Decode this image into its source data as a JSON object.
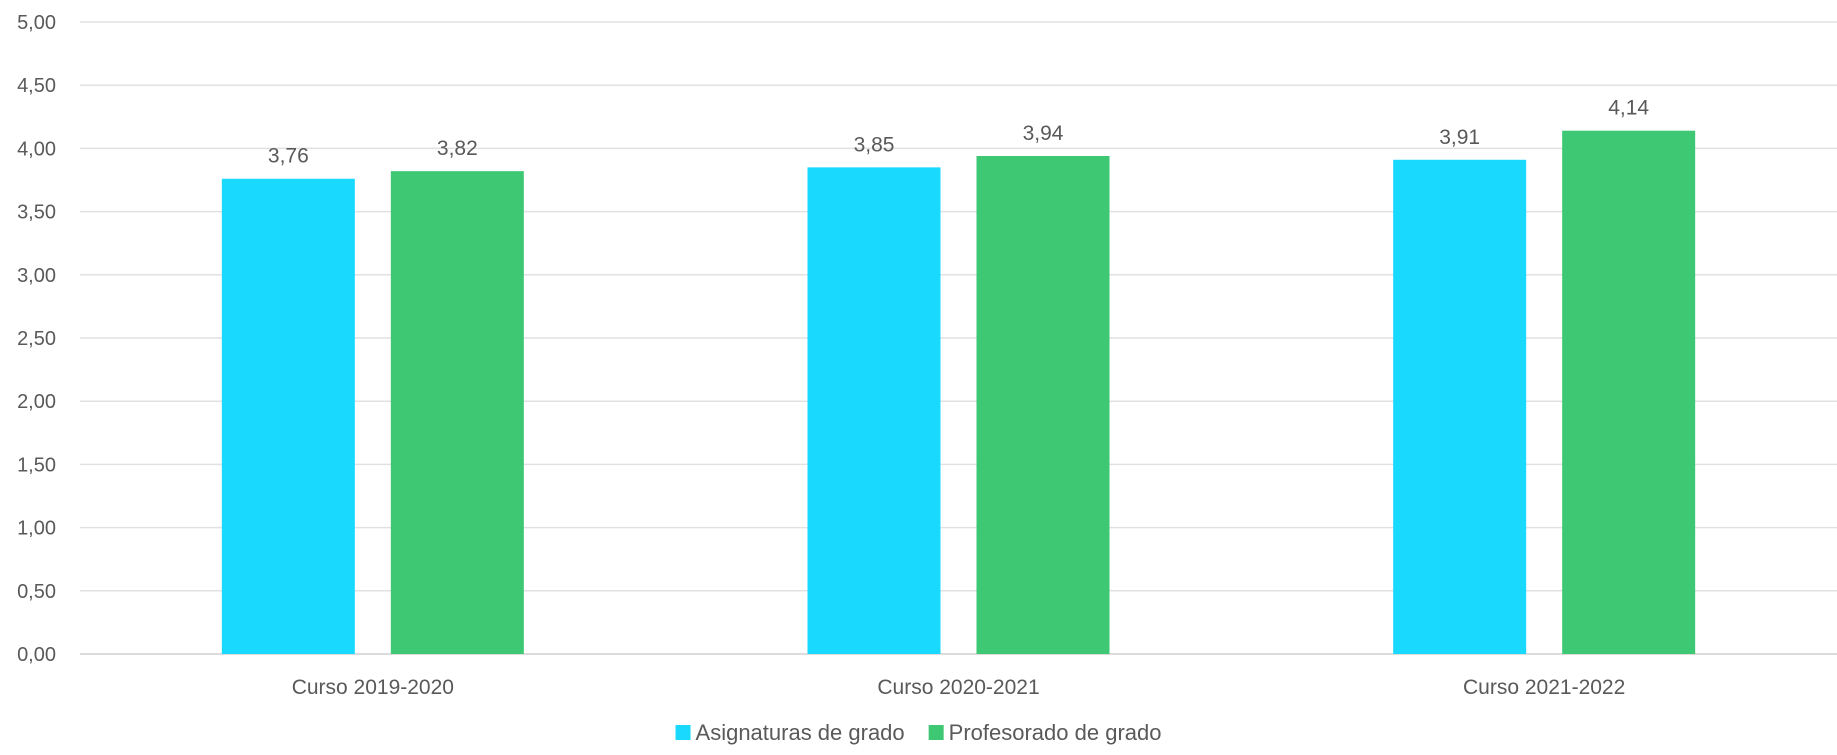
{
  "chart_data": {
    "type": "bar",
    "categories": [
      "Curso 2019-2020",
      "Curso 2020-2021",
      "Curso 2021-2022"
    ],
    "series": [
      {
        "name": "Asignaturas de grado",
        "color": "#1ad9ff",
        "values": [
          3.76,
          3.85,
          3.91
        ],
        "labels": [
          "3,76",
          "3,85",
          "3,91"
        ]
      },
      {
        "name": "Profesorado de grado",
        "color": "#3ec874",
        "values": [
          3.82,
          3.94,
          4.14
        ],
        "labels": [
          "3,82",
          "3,94",
          "4,14"
        ]
      }
    ],
    "ylim": [
      0,
      5
    ],
    "yticks": [
      0,
      0.5,
      1,
      1.5,
      2,
      2.5,
      3,
      3.5,
      4,
      4.5,
      5
    ],
    "ytick_labels": [
      "0,00",
      "0,50",
      "1,00",
      "1,50",
      "2,00",
      "2,50",
      "3,00",
      "3,50",
      "4,00",
      "4,50",
      "5,00"
    ],
    "grid": true,
    "legend_position": "bottom-center",
    "title": "",
    "xlabel": "",
    "ylabel": ""
  }
}
